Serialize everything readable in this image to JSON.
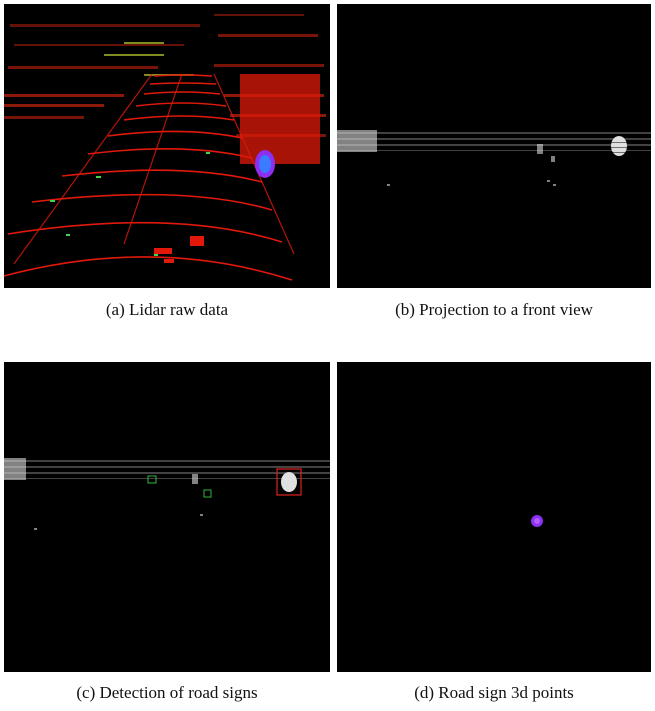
{
  "figures": [
    {
      "id": "a",
      "caption": "(a) Lidar raw data"
    },
    {
      "id": "b",
      "caption": "(b) Projection to a front view"
    },
    {
      "id": "c",
      "caption": "(c) Detection of road signs"
    },
    {
      "id": "d",
      "caption": "(d) Road sign 3d points"
    }
  ],
  "colors": {
    "background": "#000000",
    "lidar_points": "#e0190a",
    "ground_highlight": "#3fd64a",
    "sign_points": "#8c2ff0",
    "front_view_points": "#d8d8d8",
    "detection_positive": "#e0211a",
    "detection_candidate": "#2fb83a"
  },
  "icons": {
    "panel_a": "lidar-point-cloud",
    "panel_b": "front-view-projection",
    "panel_c": "detection-boxes",
    "panel_d": "road-sign-points"
  }
}
